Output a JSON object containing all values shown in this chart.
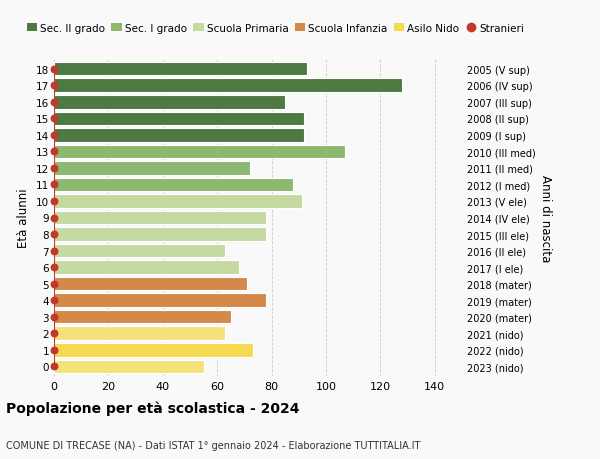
{
  "ages": [
    0,
    1,
    2,
    3,
    4,
    5,
    6,
    7,
    8,
    9,
    10,
    11,
    12,
    13,
    14,
    15,
    16,
    17,
    18
  ],
  "values": [
    55,
    73,
    63,
    65,
    78,
    71,
    68,
    63,
    78,
    78,
    91,
    88,
    72,
    107,
    92,
    92,
    85,
    128,
    93
  ],
  "right_labels": [
    "2023 (nido)",
    "2022 (nido)",
    "2021 (nido)",
    "2020 (mater)",
    "2019 (mater)",
    "2018 (mater)",
    "2017 (I ele)",
    "2016 (II ele)",
    "2015 (III ele)",
    "2014 (IV ele)",
    "2013 (V ele)",
    "2012 (I med)",
    "2011 (II med)",
    "2010 (III med)",
    "2009 (I sup)",
    "2008 (II sup)",
    "2007 (III sup)",
    "2006 (IV sup)",
    "2005 (V sup)"
  ],
  "bar_colors": [
    "#f5e27a",
    "#f5d94e",
    "#f5e27a",
    "#d4894a",
    "#d4894a",
    "#d4894a",
    "#c5d9a0",
    "#c5d9a0",
    "#c5d9a0",
    "#c5d9a0",
    "#c5d9a0",
    "#8db870",
    "#8db870",
    "#8db870",
    "#4f7942",
    "#4f7942",
    "#4f7942",
    "#4f7942",
    "#4f7942"
  ],
  "legend_labels": [
    "Sec. II grado",
    "Sec. I grado",
    "Scuola Primaria",
    "Scuola Infanzia",
    "Asilo Nido",
    "Stranieri"
  ],
  "legend_colors": [
    "#4f7942",
    "#8db870",
    "#c5d9a0",
    "#d4894a",
    "#f5d94e",
    "#c0392b"
  ],
  "ylabel": "Età alunni",
  "right_ylabel": "Anni di nascita",
  "title": "Popolazione per età scolastica - 2024",
  "subtitle": "COMUNE DI TRECASE (NA) - Dati ISTAT 1° gennaio 2024 - Elaborazione TUTTITALIA.IT",
  "xlim": [
    0,
    150
  ],
  "xticks": [
    0,
    20,
    40,
    60,
    80,
    100,
    120,
    140
  ],
  "bg_color": "#f9f9f9",
  "bar_edge_color": "white",
  "dot_color": "#c0392b",
  "dot_size": 22,
  "grid_color": "#cccccc"
}
